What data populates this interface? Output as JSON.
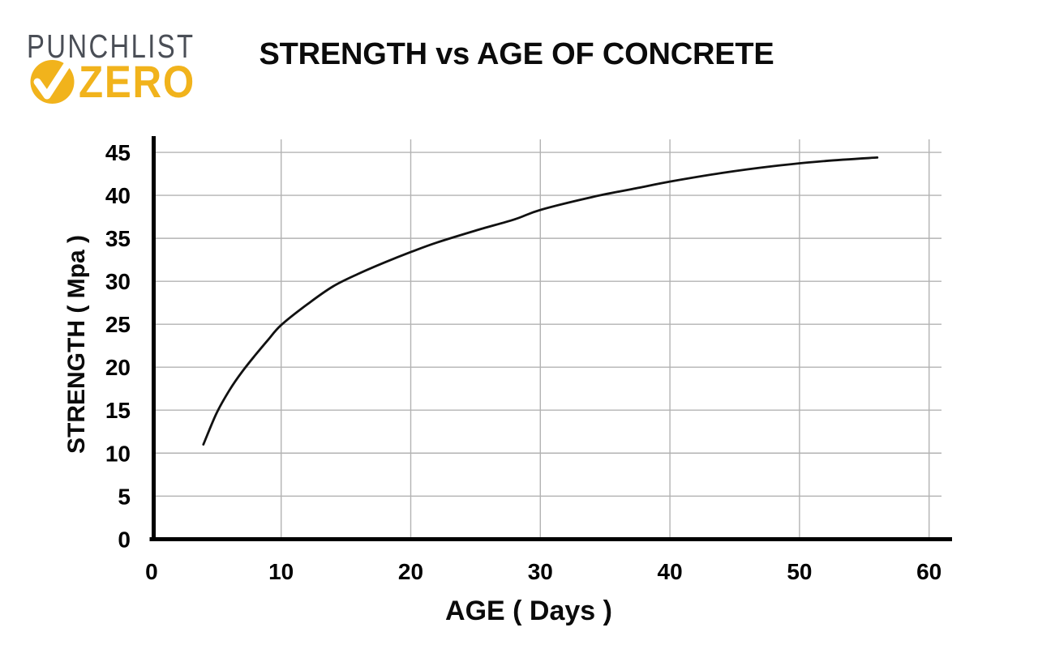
{
  "logo": {
    "line1": "PUNCHLIST",
    "line2": "ZERO",
    "gray": "#4A4E56",
    "yellow": "#F1B31C"
  },
  "chart_data": {
    "type": "line",
    "title": "STRENGTH vs AGE OF CONCRETE",
    "xlabel": "AGE ( Days )",
    "ylabel": "STRENGTH ( Mpa )",
    "xlim": [
      0,
      61
    ],
    "ylim": [
      0,
      46.5
    ],
    "x_ticks": [
      0,
      10,
      20,
      30,
      40,
      50,
      60
    ],
    "y_ticks": [
      0,
      5,
      10,
      15,
      20,
      25,
      30,
      35,
      40,
      45
    ],
    "grid": true,
    "legend": false,
    "line_color": "#111111",
    "gridline_color": "#B3B3B3",
    "axis_color": "#000000",
    "series": [
      {
        "name": "strength-curve",
        "points": [
          [
            4,
            11
          ],
          [
            5,
            14.6
          ],
          [
            6,
            17.3
          ],
          [
            7,
            19.5
          ],
          [
            8,
            21.4
          ],
          [
            9,
            23.2
          ],
          [
            10,
            24.9
          ],
          [
            12,
            27.3
          ],
          [
            14,
            29.4
          ],
          [
            16,
            30.9
          ],
          [
            18,
            32.2
          ],
          [
            20,
            33.4
          ],
          [
            22,
            34.5
          ],
          [
            25,
            35.9
          ],
          [
            28,
            37.2
          ],
          [
            30,
            38.3
          ],
          [
            34,
            39.8
          ],
          [
            38,
            41.0
          ],
          [
            40,
            41.6
          ],
          [
            44,
            42.6
          ],
          [
            48,
            43.4
          ],
          [
            52,
            44.0
          ],
          [
            56,
            44.4
          ]
        ]
      }
    ]
  }
}
